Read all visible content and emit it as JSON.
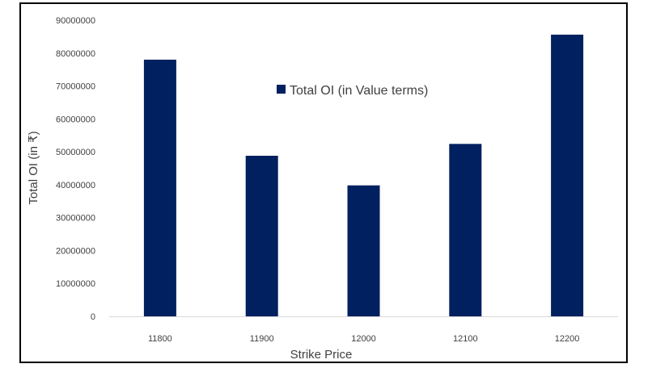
{
  "chart_data": {
    "type": "bar",
    "categories": [
      "11800",
      "11900",
      "12000",
      "12100",
      "12200"
    ],
    "series": [
      {
        "name": "Total OI (in Value terms)",
        "color": "#002060",
        "values": [
          78000000,
          48800000,
          39800000,
          52400000,
          85600000
        ]
      }
    ],
    "yticks": [
      "0",
      "10000000",
      "20000000",
      "30000000",
      "40000000",
      "50000000",
      "60000000",
      "70000000",
      "80000000",
      "90000000"
    ],
    "ylim": [
      0,
      90000000
    ],
    "xlabel": "Strike Price",
    "ylabel": "Total OI (in ₹)",
    "legend_position": "top-center inside plot",
    "grid": false
  }
}
